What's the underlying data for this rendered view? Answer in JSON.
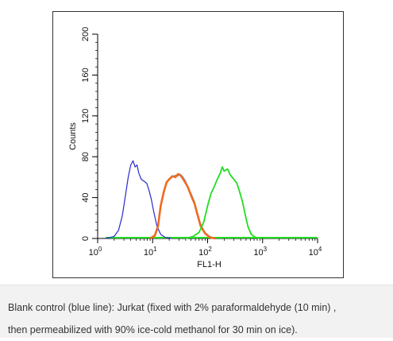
{
  "chart_data": {
    "type": "line",
    "title": "",
    "xlabel": "FL1-H",
    "ylabel": "Counts",
    "x_scale": "log",
    "xlim": [
      1,
      10000
    ],
    "ylim": [
      0,
      200
    ],
    "x_ticks": [
      {
        "value": 1,
        "base": "10",
        "exp": "0"
      },
      {
        "value": 10,
        "base": "10",
        "exp": "1"
      },
      {
        "value": 100,
        "base": "10",
        "exp": "2"
      },
      {
        "value": 1000,
        "base": "10",
        "exp": "3"
      },
      {
        "value": 10000,
        "base": "10",
        "exp": "4"
      }
    ],
    "y_ticks": [
      0,
      40,
      80,
      120,
      160,
      200
    ],
    "grid": false,
    "legend": "none",
    "series": [
      {
        "color": "#2a2ad0",
        "points": [
          [
            1.4,
            0
          ],
          [
            2,
            2
          ],
          [
            2.4,
            8
          ],
          [
            2.8,
            22
          ],
          [
            3.2,
            42
          ],
          [
            3.6,
            60
          ],
          [
            4,
            72
          ],
          [
            4.4,
            76
          ],
          [
            4.8,
            70
          ],
          [
            5.2,
            72
          ],
          [
            5.6,
            64
          ],
          [
            6.2,
            58
          ],
          [
            7,
            56
          ],
          [
            7.8,
            54
          ],
          [
            8.5,
            48
          ],
          [
            9.5,
            38
          ],
          [
            10.5,
            26
          ],
          [
            12,
            12
          ],
          [
            14,
            4
          ],
          [
            17,
            1
          ],
          [
            22,
            0
          ]
        ]
      },
      {
        "color": "#4aa8e8",
        "points": [
          [
            9,
            0
          ],
          [
            11,
            2
          ],
          [
            12.5,
            10
          ],
          [
            14,
            30
          ],
          [
            16,
            44
          ],
          [
            18,
            54
          ],
          [
            20,
            58
          ],
          [
            23,
            60
          ],
          [
            26,
            62
          ],
          [
            29,
            61
          ],
          [
            32,
            63
          ],
          [
            36,
            60
          ],
          [
            40,
            56
          ],
          [
            44,
            50
          ],
          [
            50,
            44
          ],
          [
            58,
            36
          ],
          [
            65,
            26
          ],
          [
            75,
            14
          ],
          [
            90,
            6
          ],
          [
            110,
            2
          ],
          [
            140,
            0
          ]
        ]
      },
      {
        "color": "#f06a1e",
        "points": [
          [
            9,
            0
          ],
          [
            11,
            3
          ],
          [
            12.5,
            12
          ],
          [
            14,
            32
          ],
          [
            16,
            46
          ],
          [
            18,
            55
          ],
          [
            20,
            58
          ],
          [
            23,
            61
          ],
          [
            26,
            60
          ],
          [
            29,
            63
          ],
          [
            32,
            62
          ],
          [
            36,
            58
          ],
          [
            40,
            54
          ],
          [
            44,
            50
          ],
          [
            50,
            42
          ],
          [
            58,
            34
          ],
          [
            65,
            24
          ],
          [
            75,
            12
          ],
          [
            90,
            5
          ],
          [
            110,
            1
          ],
          [
            140,
            0
          ]
        ]
      },
      {
        "color": "#22dd22",
        "points": [
          [
            40,
            0
          ],
          [
            55,
            2
          ],
          [
            70,
            6
          ],
          [
            85,
            16
          ],
          [
            100,
            32
          ],
          [
            115,
            44
          ],
          [
            130,
            50
          ],
          [
            150,
            58
          ],
          [
            170,
            64
          ],
          [
            185,
            70
          ],
          [
            200,
            66
          ],
          [
            230,
            68
          ],
          [
            260,
            62
          ],
          [
            300,
            58
          ],
          [
            340,
            54
          ],
          [
            380,
            46
          ],
          [
            430,
            36
          ],
          [
            480,
            24
          ],
          [
            540,
            12
          ],
          [
            620,
            4
          ],
          [
            750,
            1
          ],
          [
            900,
            0
          ]
        ]
      }
    ]
  },
  "caption": {
    "line1": "Blank control (blue line): Jurkat (fixed with 2% paraformaldehyde (10 min) ,",
    "line2": "then permeabilized with 90% ice-cold methanol for 30 min on ice)."
  }
}
